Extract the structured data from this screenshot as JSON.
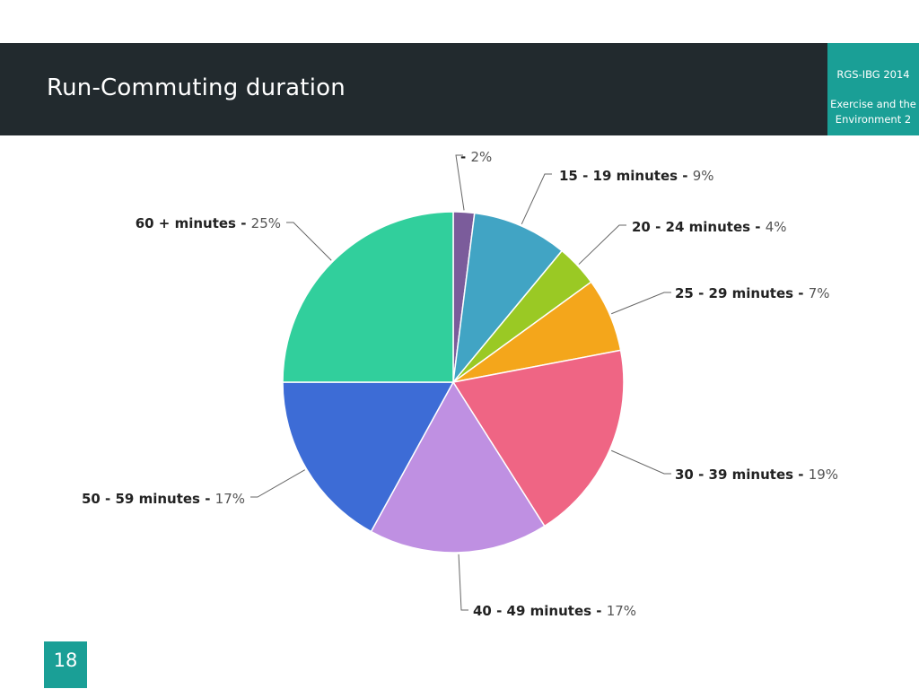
{
  "slide": {
    "title": "Run-Commuting duration",
    "conference": "RGS-IBG 2014",
    "session": "Exercise and the Environment 2",
    "page_number": "18"
  },
  "colors": {
    "header_bg": "#222a2e",
    "accent": "#1a9f96"
  },
  "chart_data": {
    "type": "pie",
    "title": "",
    "start_angle": "12 o'clock, clockwise",
    "slices": [
      {
        "label": "",
        "value": 2,
        "pct_text": "2%",
        "color": "#7b5c9b"
      },
      {
        "label": "15 - 19 minutes",
        "value": 9,
        "pct_text": "9%",
        "color": "#41a4c4"
      },
      {
        "label": "20 - 24 minutes",
        "value": 4,
        "pct_text": "4%",
        "color": "#9ac924"
      },
      {
        "label": "25 - 29 minutes",
        "value": 7,
        "pct_text": "7%",
        "color": "#f4a61b"
      },
      {
        "label": "30 - 39 minutes",
        "value": 19,
        "pct_text": "19%",
        "color": "#ef6584"
      },
      {
        "label": "40 - 49 minutes",
        "value": 17,
        "pct_text": "17%",
        "color": "#bf90e2"
      },
      {
        "label": "50 - 59 minutes",
        "value": 17,
        "pct_text": "17%",
        "color": "#3d6cd6"
      },
      {
        "label": "60 + minutes",
        "value": 25,
        "pct_text": "25%",
        "color": "#31cf9c"
      }
    ]
  }
}
